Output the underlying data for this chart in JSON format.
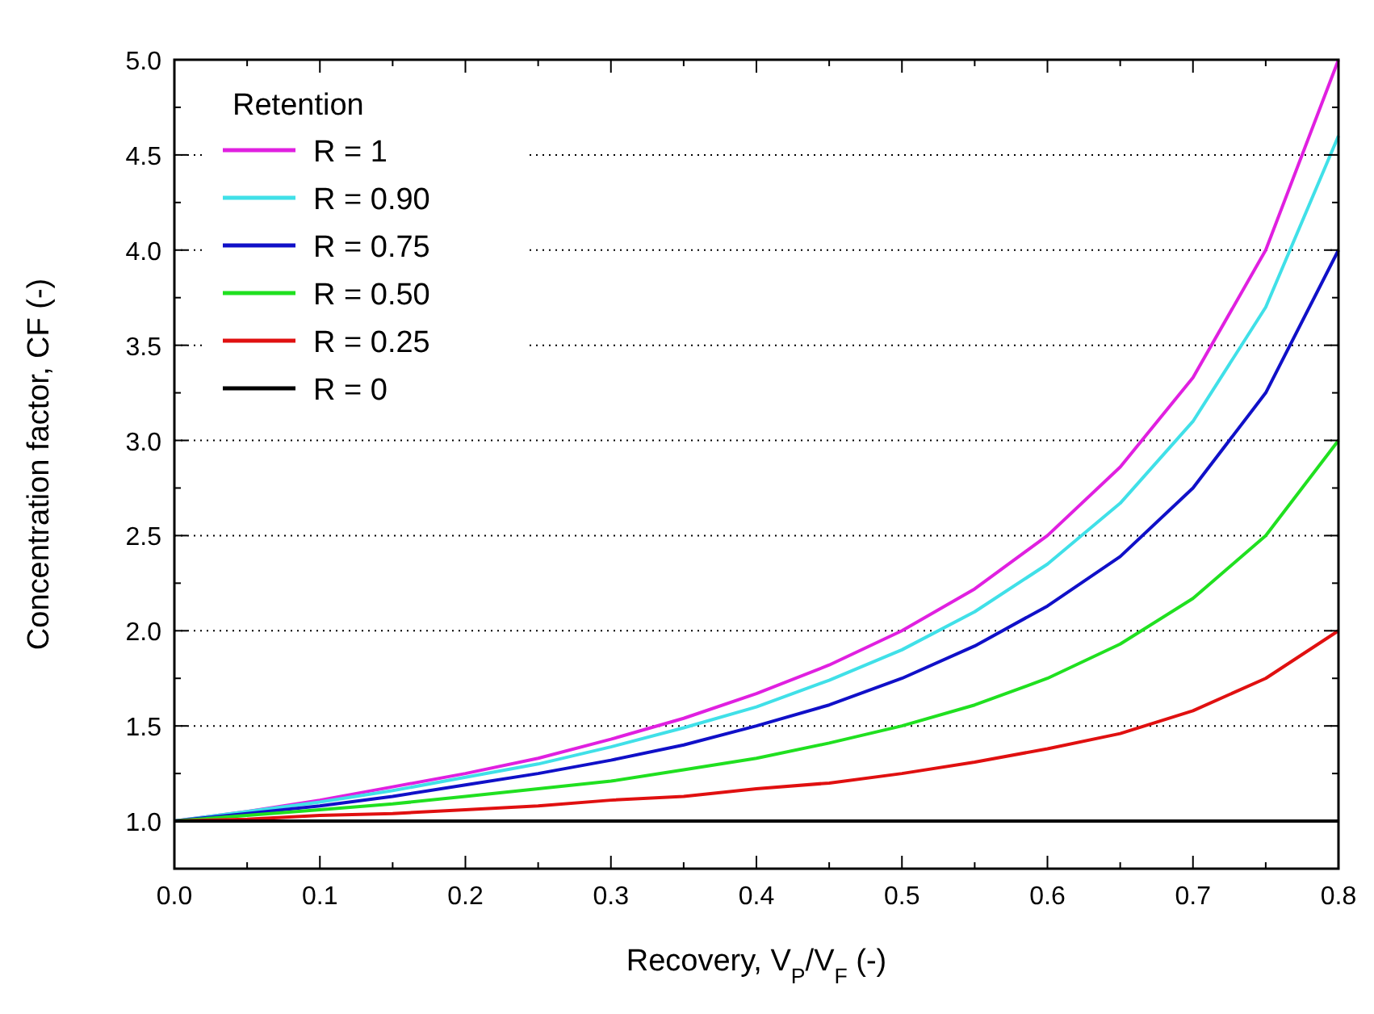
{
  "chart_data": {
    "type": "line",
    "xlabel": "Recovery, V$_{P}$/V$_{F}$ (-)",
    "ylabel": "Concentration factor, CF (-)",
    "legend_title": "Retention",
    "legend": "top left",
    "grid": "y",
    "marker": "none",
    "line_style": "solid",
    "x": [
      0,
      0.05,
      0.1,
      0.15,
      0.2,
      0.25,
      0.3,
      0.35,
      0.4,
      0.45,
      0.5,
      0.55,
      0.6,
      0.65,
      0.7,
      0.75,
      0.8
    ],
    "xlim": [
      0,
      0.8
    ],
    "xticks": [
      {
        "value": 0,
        "label": "0.0"
      },
      0.1,
      0.2,
      0.3,
      0.4,
      0.5,
      0.6,
      0.7,
      0.8
    ],
    "ylim": [
      0.75,
      5.0
    ],
    "yticks": [
      {
        "value": 1,
        "label": "1.0"
      },
      1.5,
      {
        "value": 2,
        "label": "2.0"
      },
      2.5,
      {
        "value": 3,
        "label": "3.0"
      },
      3.5,
      {
        "value": 4,
        "label": "4.0"
      },
      4.5,
      {
        "value": 5,
        "label": "5.0"
      }
    ],
    "series": [
      {
        "name": "R = 1",
        "color": "#e020e0",
        "values": [
          1,
          1.05,
          1.11,
          1.18,
          1.25,
          1.33,
          1.43,
          1.54,
          1.67,
          1.82,
          2,
          2.22,
          2.5,
          2.86,
          3.33,
          4,
          5
        ]
      },
      {
        "name": "R = 0.90",
        "color": "#40e0e8",
        "values": [
          1,
          1.05,
          1.1,
          1.16,
          1.23,
          1.3,
          1.39,
          1.49,
          1.6,
          1.74,
          1.9,
          2.1,
          2.35,
          2.67,
          3.1,
          3.7,
          4.6
        ]
      },
      {
        "name": "R = 0.75",
        "color": "#1010c8",
        "values": [
          1,
          1.04,
          1.08,
          1.13,
          1.19,
          1.25,
          1.32,
          1.4,
          1.5,
          1.61,
          1.75,
          1.92,
          2.13,
          2.39,
          2.75,
          3.25,
          4
        ]
      },
      {
        "name": "R = 0.50",
        "color": "#20e020",
        "values": [
          1,
          1.03,
          1.06,
          1.09,
          1.13,
          1.17,
          1.21,
          1.27,
          1.33,
          1.41,
          1.5,
          1.61,
          1.75,
          1.93,
          2.17,
          2.5,
          3
        ]
      },
      {
        "name": "R = 0.25",
        "color": "#e01010",
        "values": [
          1,
          1.01,
          1.03,
          1.04,
          1.06,
          1.08,
          1.11,
          1.13,
          1.17,
          1.2,
          1.25,
          1.31,
          1.38,
          1.46,
          1.58,
          1.75,
          2
        ]
      },
      {
        "name": "R = 0",
        "color": "#000000",
        "values": [
          1,
          1,
          1,
          1,
          1,
          1,
          1,
          1,
          1,
          1,
          1,
          1,
          1,
          1,
          1,
          1,
          1
        ]
      }
    ]
  }
}
